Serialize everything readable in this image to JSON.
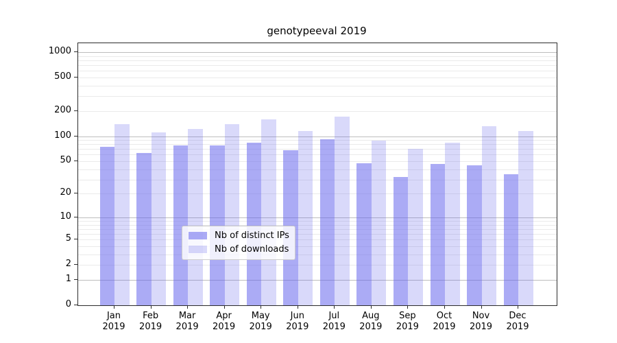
{
  "chart_data": {
    "type": "bar",
    "title": "genotypeeval 2019",
    "categories": [
      "Jan",
      "Feb",
      "Mar",
      "Apr",
      "May",
      "Jun",
      "Jul",
      "Aug",
      "Sep",
      "Oct",
      "Nov",
      "Dec"
    ],
    "year_label": "2019",
    "series": [
      {
        "name": "Nb of distinct IPs",
        "color": "rgba(102,102,236,0.55)",
        "values": [
          75,
          63,
          78,
          77,
          84,
          68,
          92,
          47,
          32,
          46,
          45,
          35
        ]
      },
      {
        "name": "Nb of downloads",
        "color": "rgba(102,102,236,0.25)",
        "values": [
          140,
          112,
          121,
          140,
          160,
          115,
          172,
          89,
          71,
          84,
          131,
          115
        ]
      }
    ],
    "y_axis": {
      "scale": "log1p",
      "tick_values": [
        1000,
        500,
        200,
        100,
        50,
        20,
        10,
        5,
        2,
        1,
        0
      ],
      "tick_labels": [
        "1000",
        "500",
        "200",
        "100",
        "50",
        "20",
        "10",
        "5",
        "2",
        "1",
        "0"
      ],
      "major_gridlines": [
        1,
        10,
        100,
        1000
      ],
      "minor_gridlines": [
        2,
        3,
        4,
        5,
        6,
        7,
        8,
        9,
        20,
        30,
        40,
        50,
        60,
        70,
        80,
        90,
        200,
        300,
        400,
        500,
        600,
        700,
        800,
        900
      ],
      "ylim": [
        0,
        1275
      ]
    },
    "xlabel": "",
    "ylabel": "",
    "grid": true,
    "legend": {
      "position": "inside-bottom-center",
      "items": [
        "Nb of distinct IPs",
        "Nb of downloads"
      ]
    }
  },
  "colors": {
    "bar_distinct_ips": "rgba(102,102,236,0.55)",
    "bar_downloads": "rgba(102,102,236,0.25)",
    "major_grid": "#bdbdbd",
    "minor_grid": "#eaeaea",
    "spine": "#2b2b2b",
    "text": "#000000",
    "legend_border": "#cccccc"
  }
}
